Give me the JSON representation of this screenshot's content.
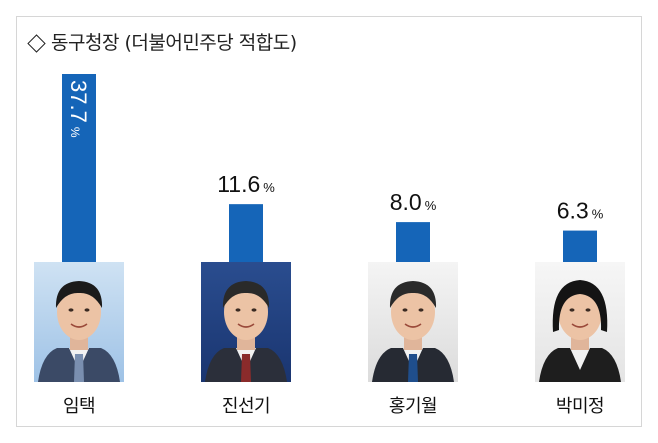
{
  "chart_data": {
    "type": "bar",
    "title": "동구청장 (더불어민주당 적합도)",
    "categories": [
      "임택",
      "진선기",
      "홍기월",
      "박미정"
    ],
    "values": [
      37.7,
      11.6,
      8.0,
      6.3
    ],
    "value_labels": [
      "37.7",
      "11.6",
      "8.0",
      "6.3"
    ],
    "unit": "%",
    "bar_color": "#1565b8",
    "grid": false,
    "legend": "none"
  }
}
